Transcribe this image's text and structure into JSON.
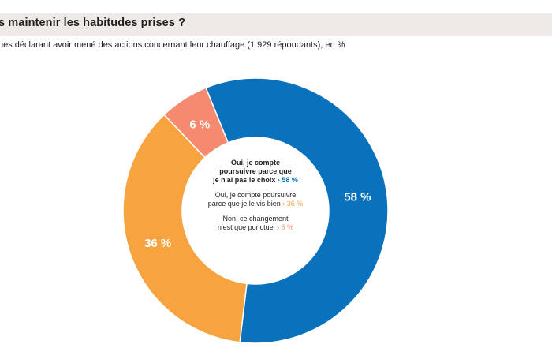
{
  "header": {
    "title": "s maintenir les habitudes prises ?",
    "subtitle": "nes déclarant avoir mené des actions concernant leur chauffage (1 929  répondants), en %"
  },
  "chart_data": {
    "type": "pie",
    "subtype": "donut",
    "title": "",
    "slices": [
      {
        "label": "Oui, je compte poursuivre parce que je n'ai pas le choix",
        "value": 58,
        "display": "58 %",
        "color": "#0a72bd",
        "legend_lines": [
          "Oui, je compte",
          "poursuivre parce que",
          "je n'ai pas le choix"
        ]
      },
      {
        "label": "Oui, je compte poursuivre parce que je le vis bien",
        "value": 36,
        "display": "36 %",
        "color": "#f6a340",
        "legend_lines": [
          "Oui, je compte poursuivre",
          "parce que je le vis bien"
        ]
      },
      {
        "label": "Non, ce changement n'est que ponctuel",
        "value": 6,
        "display": "6 %",
        "color": "#f58a70",
        "legend_lines": [
          "Non, ce changement",
          "n'est que ponctuel"
        ]
      }
    ],
    "legend_placement": "center",
    "start_angle_deg": -112,
    "direction": "clockwise"
  }
}
